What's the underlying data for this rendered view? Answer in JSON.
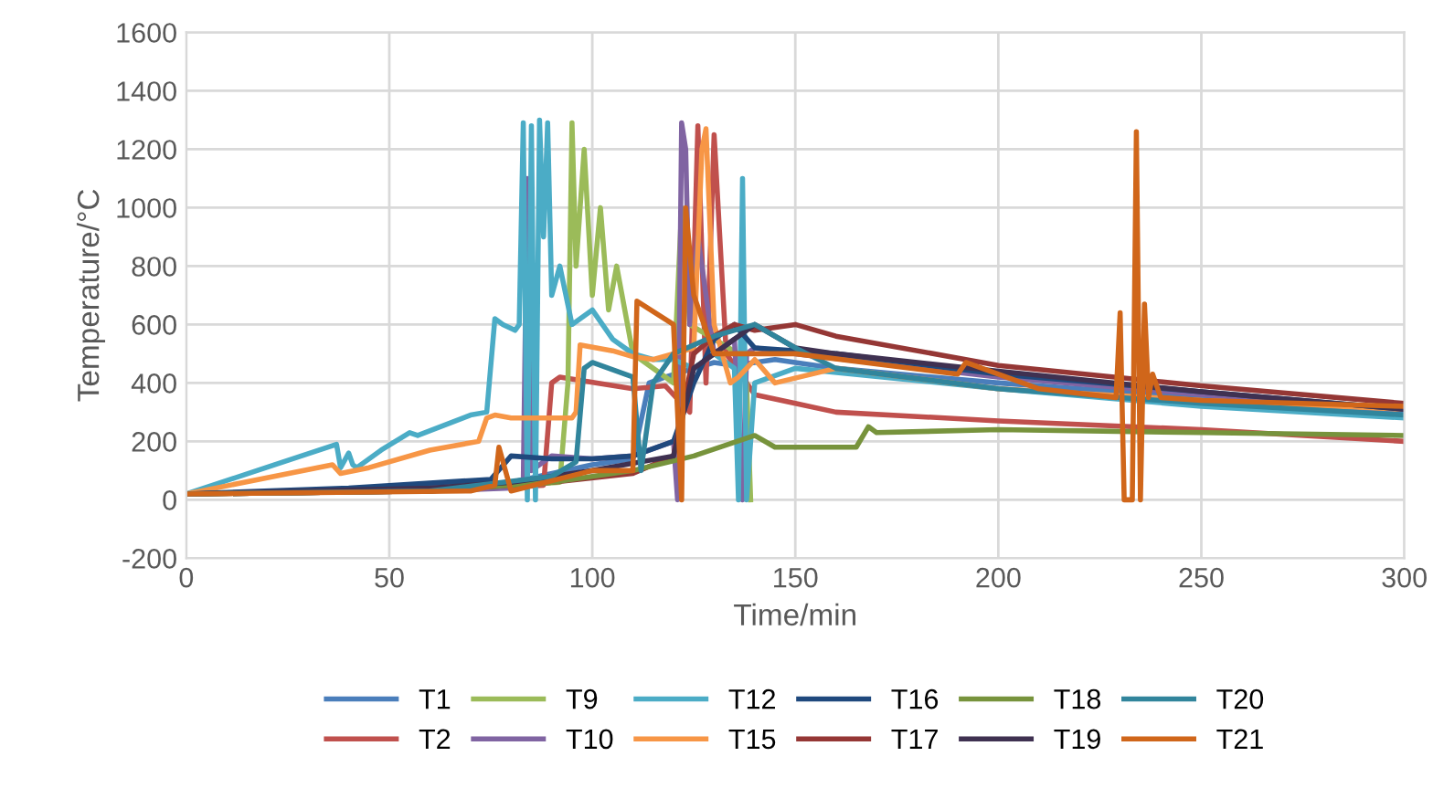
{
  "chart_data": {
    "type": "line",
    "xlabel": "Time/min",
    "ylabel": "Temperature/°C",
    "xlim": [
      0,
      300
    ],
    "xticks": [
      0,
      50,
      100,
      150,
      200,
      250,
      300
    ],
    "ylim": [
      -200,
      1600
    ],
    "yticks": [
      -200,
      0,
      200,
      400,
      600,
      800,
      1000,
      1200,
      1400,
      1600
    ],
    "grid": true,
    "legend": "bottom",
    "marker": "none",
    "line_style": "solid",
    "series": [
      {
        "name": "T1",
        "color": "#4a7ebb",
        "x": [
          0,
          40,
          80,
          100,
          110,
          114,
          118,
          125,
          130,
          135,
          145,
          160,
          200,
          250,
          300
        ],
        "values": [
          20,
          30,
          60,
          120,
          140,
          400,
          420,
          450,
          470,
          460,
          480,
          450,
          400,
          350,
          300
        ]
      },
      {
        "name": "T2",
        "color": "#c0504d",
        "x": [
          0,
          60,
          88,
          90,
          92,
          110,
          118,
          124,
          126,
          128,
          130,
          133,
          140,
          150,
          160,
          200,
          250,
          300
        ],
        "values": [
          20,
          30,
          50,
          400,
          420,
          380,
          390,
          300,
          1280,
          400,
          1250,
          500,
          360,
          330,
          300,
          270,
          240,
          200
        ]
      },
      {
        "name": "T9",
        "color": "#9bbb59",
        "x": [
          0,
          60,
          92,
          94,
          95,
          96,
          98,
          100,
          102,
          104,
          106,
          110,
          115,
          120,
          122,
          124,
          130,
          136,
          138,
          139
        ],
        "values": [
          20,
          30,
          60,
          400,
          1290,
          800,
          1200,
          700,
          1000,
          650,
          800,
          500,
          450,
          400,
          1000,
          600,
          550,
          500,
          400,
          0
        ]
      },
      {
        "name": "T10",
        "color": "#8064a2",
        "x": [
          0,
          60,
          80,
          83,
          84,
          85,
          90,
          100,
          110,
          120,
          121,
          122,
          123,
          124,
          126,
          130,
          135,
          137,
          138,
          140,
          150,
          200,
          250,
          300
        ],
        "values": [
          20,
          30,
          40,
          60,
          1100,
          100,
          150,
          140,
          150,
          200,
          0,
          1290,
          1200,
          600,
          900,
          500,
          550,
          0,
          500,
          520,
          500,
          420,
          360,
          310
        ]
      },
      {
        "name": "T12",
        "color": "#4bacc6",
        "x": [
          0,
          37,
          38,
          40,
          41,
          42,
          48,
          55,
          57,
          70,
          74,
          76,
          78,
          81,
          82,
          83,
          84,
          85,
          86,
          87,
          88,
          89,
          90,
          92,
          95,
          100,
          105,
          110,
          115,
          120,
          125,
          130,
          135,
          136,
          137,
          138,
          140,
          150,
          200,
          250,
          300
        ],
        "values": [
          20,
          190,
          110,
          160,
          120,
          110,
          170,
          230,
          220,
          290,
          300,
          620,
          600,
          580,
          600,
          1290,
          0,
          1280,
          0,
          1300,
          900,
          1290,
          700,
          800,
          600,
          650,
          550,
          500,
          480,
          480,
          450,
          500,
          450,
          0,
          1100,
          0,
          400,
          450,
          380,
          320,
          280
        ]
      },
      {
        "name": "T15",
        "color": "#f79646",
        "x": [
          0,
          36,
          38,
          45,
          60,
          72,
          74,
          76,
          80,
          95,
          96,
          97,
          105,
          110,
          115,
          120,
          125,
          127,
          128,
          130,
          134,
          136,
          140,
          145,
          160,
          200,
          250,
          300
        ],
        "values": [
          20,
          120,
          90,
          110,
          170,
          200,
          280,
          290,
          280,
          280,
          300,
          530,
          510,
          490,
          480,
          500,
          520,
          1200,
          1270,
          600,
          400,
          420,
          480,
          400,
          450,
          380,
          340,
          310
        ]
      },
      {
        "name": "T16",
        "color": "#1f497d",
        "x": [
          0,
          40,
          75,
          80,
          90,
          100,
          110,
          120,
          125,
          130,
          135,
          140,
          160,
          200,
          250,
          300
        ],
        "values": [
          20,
          40,
          70,
          150,
          140,
          140,
          150,
          200,
          400,
          550,
          600,
          520,
          500,
          430,
          370,
          310
        ]
      },
      {
        "name": "T17",
        "color": "#953735",
        "x": [
          0,
          60,
          90,
          110,
          120,
          125,
          130,
          135,
          140,
          150,
          160,
          200,
          250,
          300
        ],
        "values": [
          20,
          30,
          60,
          90,
          150,
          500,
          560,
          600,
          580,
          600,
          560,
          460,
          390,
          330
        ]
      },
      {
        "name": "T18",
        "color": "#77933c",
        "x": [
          0,
          60,
          90,
          110,
          125,
          140,
          145,
          165,
          168,
          170,
          200,
          250,
          300
        ],
        "values": [
          20,
          30,
          60,
          100,
          150,
          220,
          180,
          180,
          250,
          230,
          240,
          230,
          220
        ]
      },
      {
        "name": "T19",
        "color": "#3f3151",
        "x": [
          0,
          60,
          80,
          100,
          120,
          125,
          130,
          140,
          150,
          160,
          200,
          250,
          300
        ],
        "values": [
          20,
          40,
          60,
          100,
          150,
          450,
          500,
          600,
          520,
          500,
          440,
          370,
          310
        ]
      },
      {
        "name": "T20",
        "color": "#31859c",
        "x": [
          0,
          60,
          90,
          96,
          98,
          100,
          110,
          112,
          115,
          120,
          130,
          140,
          150,
          160,
          200,
          250,
          300
        ],
        "values": [
          20,
          30,
          80,
          130,
          450,
          470,
          420,
          100,
          400,
          500,
          560,
          600,
          520,
          450,
          380,
          330,
          290
        ]
      },
      {
        "name": "T21",
        "color": "#d0661a",
        "x": [
          0,
          70,
          76,
          77,
          80,
          100,
          110,
          111,
          120,
          122,
          123,
          125,
          130,
          140,
          150,
          190,
          192,
          210,
          229,
          230,
          231,
          233,
          234,
          235,
          236,
          237,
          238,
          240,
          250,
          300
        ],
        "values": [
          20,
          30,
          50,
          180,
          30,
          100,
          100,
          680,
          600,
          0,
          1000,
          700,
          500,
          500,
          500,
          430,
          470,
          380,
          350,
          640,
          0,
          0,
          1260,
          0,
          670,
          350,
          430,
          350,
          340,
          320
        ]
      }
    ]
  }
}
